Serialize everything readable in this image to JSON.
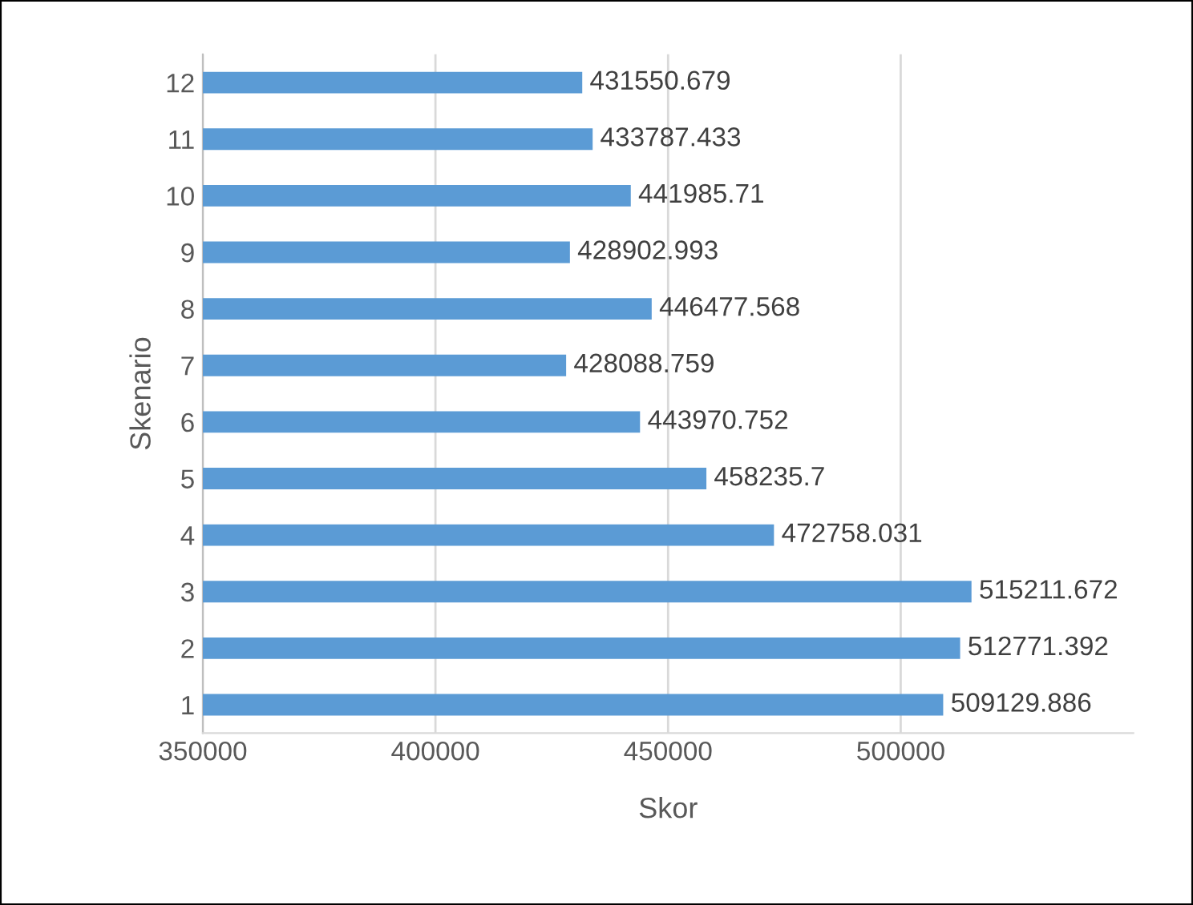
{
  "chart_data": {
    "type": "bar",
    "orientation": "horizontal",
    "xlabel": "Skor",
    "ylabel": "Skenario",
    "categories": [
      "12",
      "11",
      "10",
      "9",
      "8",
      "7",
      "6",
      "5",
      "4",
      "3",
      "2",
      "1"
    ],
    "values": [
      431550.679,
      433787.433,
      441985.71,
      428902.993,
      446477.568,
      428088.759,
      443970.752,
      458235.7,
      472758.031,
      515211.672,
      512771.392,
      509129.886
    ],
    "color": "#5b9bd5",
    "xlim": [
      350000,
      550000
    ],
    "xticks": [
      350000,
      400000,
      450000,
      500000
    ],
    "grid": "x",
    "data_labels": true,
    "legend": false
  }
}
